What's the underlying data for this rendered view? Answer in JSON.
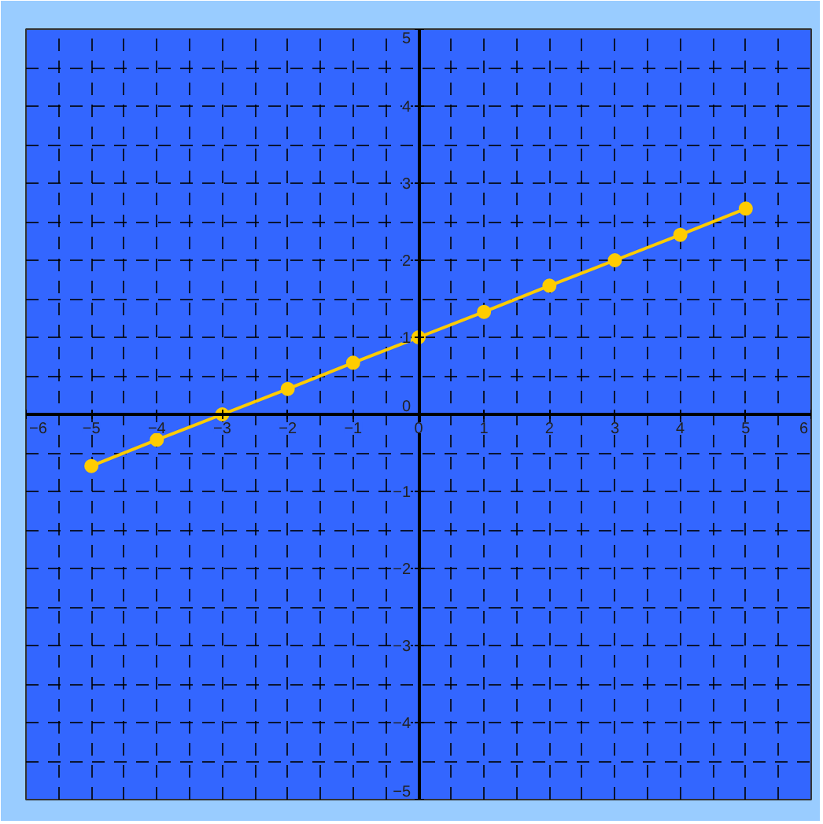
{
  "chart_data": {
    "type": "line",
    "x": [
      -5,
      -4,
      -3,
      -2,
      -1,
      0,
      1,
      2,
      3,
      4,
      5
    ],
    "series": [
      {
        "color": "#ffcc00",
        "values": [
          -0.67,
          -0.33,
          0,
          0.33,
          0.67,
          1,
          1.33,
          1.67,
          2,
          2.33,
          2.67
        ]
      }
    ],
    "xlim": [
      -6,
      6
    ],
    "ylim": [
      -5,
      5
    ],
    "xticks": [
      -6,
      -5,
      -4,
      -3,
      -2,
      -1,
      0,
      1,
      2,
      3,
      4,
      5,
      6
    ],
    "yticks": [
      -5,
      -4,
      -3,
      -2,
      -1,
      0,
      1,
      2,
      3,
      4,
      5
    ],
    "grid": true,
    "marker": "circle",
    "line_style": "solid"
  }
}
